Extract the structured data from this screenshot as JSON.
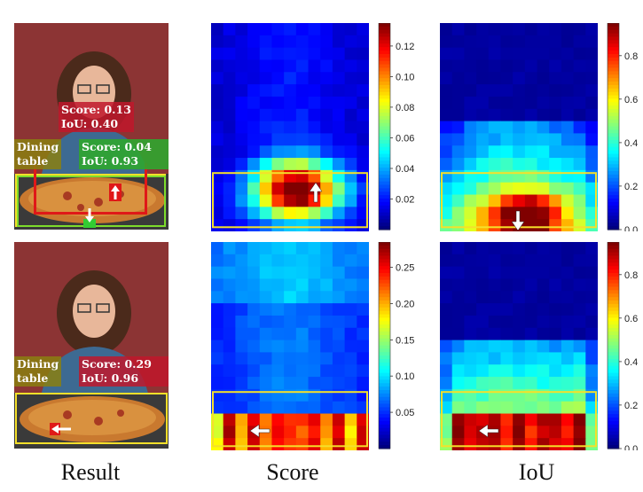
{
  "captions": {
    "result": "Result",
    "score": "Score",
    "iou": "IoU"
  },
  "rows": [
    {
      "tags": {
        "person": "Score: 0.13\nIoU: 0.40",
        "table_class": "Dining\ntable",
        "table_score": "Score: 0.04\nIoU: 0.93"
      },
      "score_cbar": {
        "ticks": [
          "0.12",
          "0.10",
          "0.08",
          "0.06",
          "0.04",
          "0.02"
        ],
        "max": 0.135
      },
      "iou_cbar": {
        "ticks": [
          "0.8",
          "0.6",
          "0.4",
          "0.2",
          "0.0"
        ],
        "max": 0.95
      }
    },
    {
      "tags": {
        "table_class": "Dining\ntable",
        "table_score": "Score: 0.29\nIoU: 0.96"
      },
      "score_cbar": {
        "ticks": [
          "0.25",
          "0.20",
          "0.15",
          "0.10",
          "0.05"
        ],
        "max": 0.285
      },
      "iou_cbar": {
        "ticks": [
          "0.8",
          "0.6",
          "0.4",
          "0.2",
          "0.0"
        ],
        "max": 0.95
      }
    }
  ],
  "colors": {
    "person_tag": "#c0182b",
    "table_tag": "#8a7f10",
    "score_tag_green": "#2fa62f",
    "box_yellow": "#f5e02a",
    "box_red": "#e01818",
    "box_green": "#7ddc2b"
  }
}
